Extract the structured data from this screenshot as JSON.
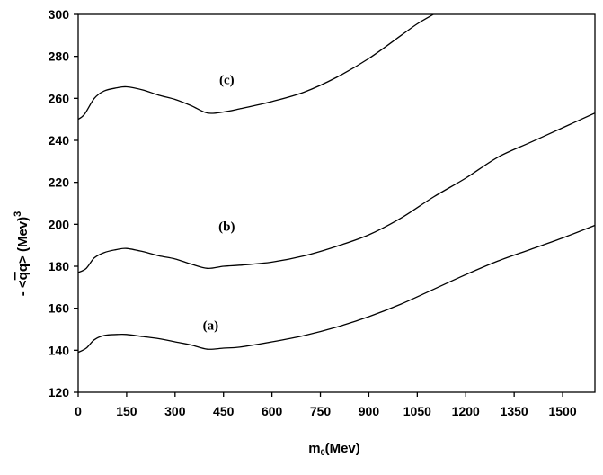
{
  "chart_data": {
    "type": "line",
    "xlabel_main": "m",
    "xlabel_sub": "0",
    "xlabel_unit": "(Mev)",
    "ylabel_prefix": "- <",
    "ylabel_q": "q",
    "ylabel_mid": "q> (Mev)",
    "ylabel_sup": "3",
    "xlim": [
      0,
      1600
    ],
    "ylim": [
      120,
      300
    ],
    "x_ticks": [
      0,
      150,
      300,
      450,
      600,
      750,
      900,
      1050,
      1200,
      1350,
      1500
    ],
    "x_tick_labels": [
      "0",
      "150",
      "300",
      "450",
      "600",
      "750",
      "900",
      "1050",
      "1200",
      "1350",
      "1500"
    ],
    "y_ticks": [
      120,
      140,
      160,
      180,
      200,
      220,
      240,
      260,
      280,
      300
    ],
    "y_tick_labels": [
      "120",
      "140",
      "160",
      "180",
      "200",
      "220",
      "240",
      "260",
      "280",
      "300"
    ],
    "grid": false,
    "series": [
      {
        "name": "(a)",
        "label_at": [
          410,
          152
        ],
        "x": [
          0,
          25,
          50,
          80,
          120,
          150,
          200,
          250,
          300,
          350,
          400,
          450,
          500,
          600,
          700,
          800,
          900,
          1000,
          1100,
          1200,
          1300,
          1400,
          1500,
          1600
        ],
        "y": [
          139,
          141,
          145,
          147,
          147.5,
          147.5,
          146.5,
          145.5,
          144,
          142.5,
          140.5,
          141,
          141.5,
          144,
          147,
          151,
          156,
          162,
          169,
          176,
          182.5,
          188,
          193.5,
          199.5
        ]
      },
      {
        "name": "(b)",
        "label_at": [
          460,
          199
        ],
        "x": [
          0,
          25,
          50,
          80,
          120,
          150,
          200,
          250,
          300,
          350,
          400,
          450,
          500,
          600,
          700,
          800,
          900,
          1000,
          1100,
          1200,
          1300,
          1400,
          1500,
          1600
        ],
        "y": [
          177,
          179,
          184,
          186.5,
          188,
          188.5,
          187,
          185,
          183.5,
          181,
          179,
          180,
          180.5,
          182,
          185,
          189.5,
          195,
          203,
          213,
          222,
          232,
          239,
          246,
          253
        ]
      },
      {
        "name": "(c)",
        "label_at": [
          460,
          269
        ],
        "x": [
          0,
          20,
          50,
          80,
          120,
          150,
          200,
          250,
          300,
          350,
          400,
          450,
          500,
          600,
          700,
          800,
          900,
          1000,
          1050,
          1100
        ],
        "y": [
          250,
          252.5,
          260,
          263.5,
          265,
          265.5,
          264,
          261.5,
          259.5,
          256.5,
          253,
          253.5,
          255,
          258.5,
          263,
          270,
          279,
          290,
          295.5,
          300
        ]
      }
    ]
  }
}
